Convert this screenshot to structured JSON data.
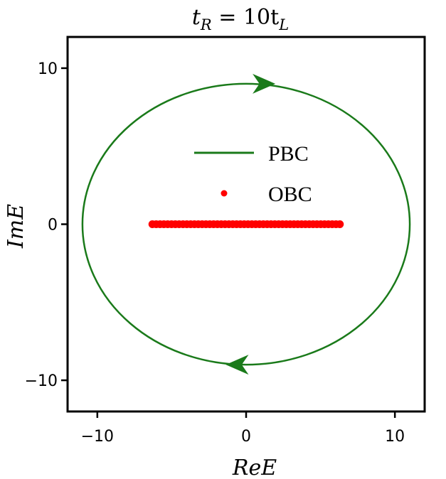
{
  "chart_data": {
    "type": "scatter",
    "title": {
      "main": "t",
      "sub1": "R",
      "mid": " = 10t",
      "sub2": "L"
    },
    "xlabel": "ReE",
    "ylabel": "ImE",
    "xlim": [
      -12,
      12
    ],
    "ylim": [
      -12,
      12
    ],
    "xticks": [
      -10,
      0,
      10
    ],
    "yticks": [
      -10,
      0,
      10
    ],
    "xtick_labels": [
      "−10",
      "0",
      "10"
    ],
    "ytick_labels": [
      "−10",
      "0",
      "10"
    ],
    "grid": false,
    "legend_position": "center",
    "series": [
      {
        "name": "PBC",
        "kind": "line",
        "shape": "ellipse",
        "center": [
          0,
          0
        ],
        "semi_axis_re": 11,
        "semi_axis_im": 9,
        "color": "#1a7a1a",
        "arrows": [
          {
            "at": [
              1.2,
              9
            ],
            "direction": "right"
          },
          {
            "at": [
              -0.6,
              -9
            ],
            "direction": "left"
          }
        ]
      },
      {
        "name": "OBC",
        "kind": "points",
        "color": "#ff0000",
        "x_range": [
          -6.3,
          6.3
        ],
        "y": 0,
        "count": 50
      }
    ]
  }
}
